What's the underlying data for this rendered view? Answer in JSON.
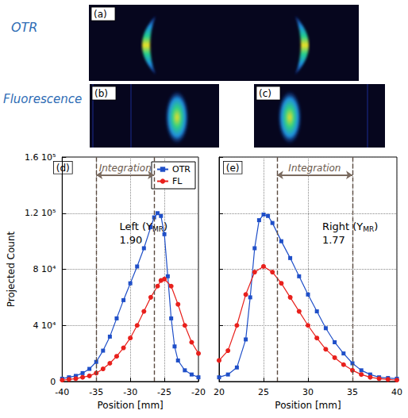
{
  "row_labels": [
    "OTR",
    "Fluorescence"
  ],
  "image_panels": [
    "(a)",
    "(b)",
    "(c)"
  ],
  "chart_data": [
    {
      "type": "line",
      "panel": "(d)",
      "xlabel": "Position [mm]",
      "ylabel": "Projected Count",
      "xlim": [
        -40,
        -20
      ],
      "xticks": [
        -40,
        -35,
        -30,
        -25,
        -20
      ],
      "ylim": [
        0,
        160000
      ],
      "yticks": [
        0,
        {
          "value": 40000,
          "label": "4 10⁴"
        },
        {
          "value": 80000,
          "label": "8 10⁴"
        },
        {
          "value": 120000,
          "label": "1.2 10⁵"
        },
        {
          "value": 160000,
          "label": "1.6 10⁵"
        }
      ],
      "grid": true,
      "legend": "upper right",
      "tick_labels": true,
      "integration": {
        "label": "Integration",
        "range": [
          -35,
          -26.5
        ]
      },
      "annotation": {
        "prefix": "Left (Y",
        "subscript": "MR",
        "suffix": ")",
        "text": "1.90"
      },
      "series": [
        {
          "name": "OTR",
          "color": "#1f4fc8",
          "marker": "square",
          "line_style": "solid",
          "x": [
            -40,
            -39,
            -38,
            -37,
            -36,
            -35,
            -34,
            -33,
            -32,
            -31,
            -30,
            -29,
            -28,
            -27,
            -26.5,
            -26,
            -25.5,
            -25,
            -24.5,
            -24,
            -23.5,
            -23,
            -22,
            -21,
            -20
          ],
          "values": [
            2000,
            3000,
            4000,
            6000,
            9000,
            14000,
            22000,
            32000,
            45000,
            58000,
            70000,
            82000,
            95000,
            110000,
            117000,
            120000,
            118000,
            105000,
            75000,
            45000,
            25000,
            15000,
            8000,
            5000,
            3000
          ]
        },
        {
          "name": "FL",
          "color": "#e8201c",
          "marker": "circle",
          "line_style": "solid",
          "x": [
            -40,
            -39,
            -38,
            -37,
            -36,
            -35,
            -34,
            -33,
            -32,
            -31,
            -30,
            -29,
            -28,
            -27,
            -26,
            -25.5,
            -25,
            -24,
            -23,
            -22,
            -21,
            -20
          ],
          "values": [
            1000,
            1500,
            2000,
            3000,
            4000,
            6000,
            9000,
            13000,
            18000,
            24000,
            31000,
            40000,
            50000,
            60000,
            68000,
            72000,
            73000,
            68000,
            55000,
            40000,
            28000,
            20000
          ]
        }
      ]
    },
    {
      "type": "line",
      "panel": "(e)",
      "xlabel": "Position [mm]",
      "xlim": [
        20,
        40
      ],
      "xticks": [
        20,
        25,
        30,
        35,
        40
      ],
      "ylim": [
        0,
        160000
      ],
      "yticks": [
        0,
        40000,
        80000,
        120000,
        160000
      ],
      "grid": true,
      "tick_labels": "x",
      "integration": {
        "label": "Integration",
        "range": [
          26.5,
          35
        ]
      },
      "annotation": {
        "prefix": "Right (Y",
        "subscript": "MR",
        "suffix": ")",
        "text": "1.77"
      },
      "series": [
        {
          "name": "OTR",
          "color": "#1f4fc8",
          "marker": "square",
          "line_style": "solid",
          "x": [
            20,
            21,
            22,
            23,
            23.5,
            24,
            24.5,
            25,
            25.5,
            26,
            27,
            28,
            29,
            30,
            31,
            32,
            33,
            34,
            35,
            36,
            37,
            38,
            39,
            40
          ],
          "values": [
            3000,
            5000,
            10000,
            30000,
            60000,
            95000,
            115000,
            119000,
            118000,
            113000,
            100000,
            88000,
            75000,
            62000,
            50000,
            38000,
            28000,
            20000,
            13000,
            8000,
            5000,
            3000,
            2500,
            2000
          ]
        },
        {
          "name": "FL",
          "color": "#e8201c",
          "marker": "circle",
          "line_style": "solid",
          "x": [
            20,
            21,
            22,
            23,
            24,
            25,
            26,
            27,
            28,
            29,
            30,
            31,
            32,
            33,
            34,
            35,
            36,
            37,
            38,
            39,
            40
          ],
          "values": [
            15000,
            22000,
            40000,
            62000,
            78000,
            82000,
            78000,
            70000,
            60000,
            50000,
            40000,
            31000,
            23000,
            17000,
            12000,
            8000,
            5000,
            3000,
            2000,
            1500,
            1000
          ]
        }
      ]
    }
  ]
}
